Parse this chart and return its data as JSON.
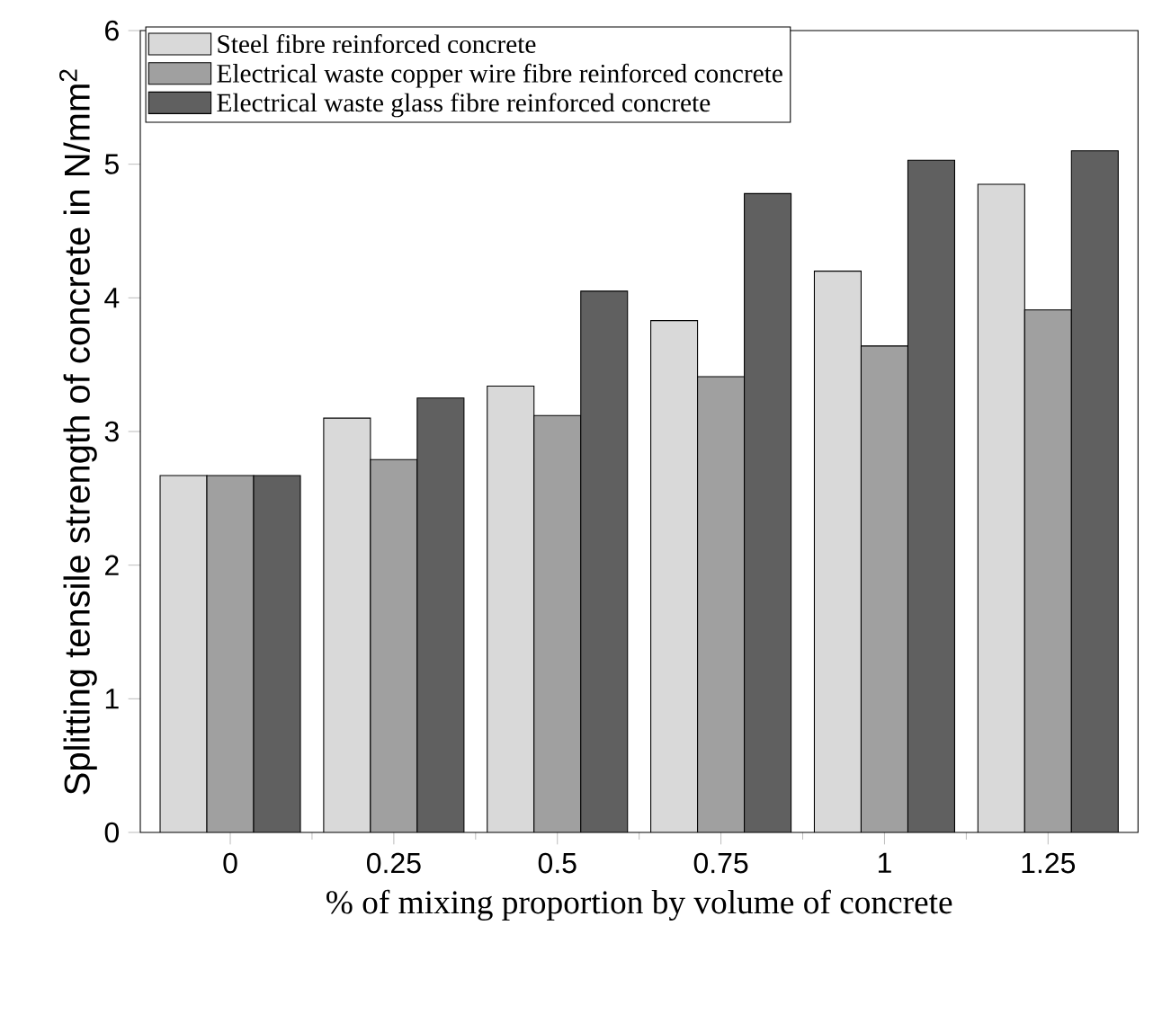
{
  "chart_data": {
    "type": "bar",
    "xlabel": "% of mixing proportion by volume of concrete",
    "ylabel": "Splitting tensile  strength of concrete in N/mm$^{2}$",
    "categories": [
      "0",
      "0.25",
      "0.5",
      "0.75",
      "1",
      "1.25"
    ],
    "series": [
      {
        "name": "Steel fibre reinforced concrete",
        "color": "#d9d9d9",
        "values": [
          2.67,
          3.1,
          3.34,
          3.83,
          4.2,
          4.85
        ]
      },
      {
        "name": "Electrical waste copper wire fibre reinforced concrete",
        "color": "#a0a0a0",
        "values": [
          2.67,
          2.79,
          3.12,
          3.41,
          3.64,
          3.91
        ]
      },
      {
        "name": "Electrical waste glass fibre reinforced concrete",
        "color": "#606060",
        "values": [
          2.67,
          3.25,
          4.05,
          4.78,
          5.03,
          5.1
        ]
      }
    ],
    "ylim": [
      0,
      6
    ],
    "yticks": [
      0,
      1,
      2,
      3,
      4,
      5,
      6
    ],
    "grid": false,
    "legend": "top left"
  }
}
